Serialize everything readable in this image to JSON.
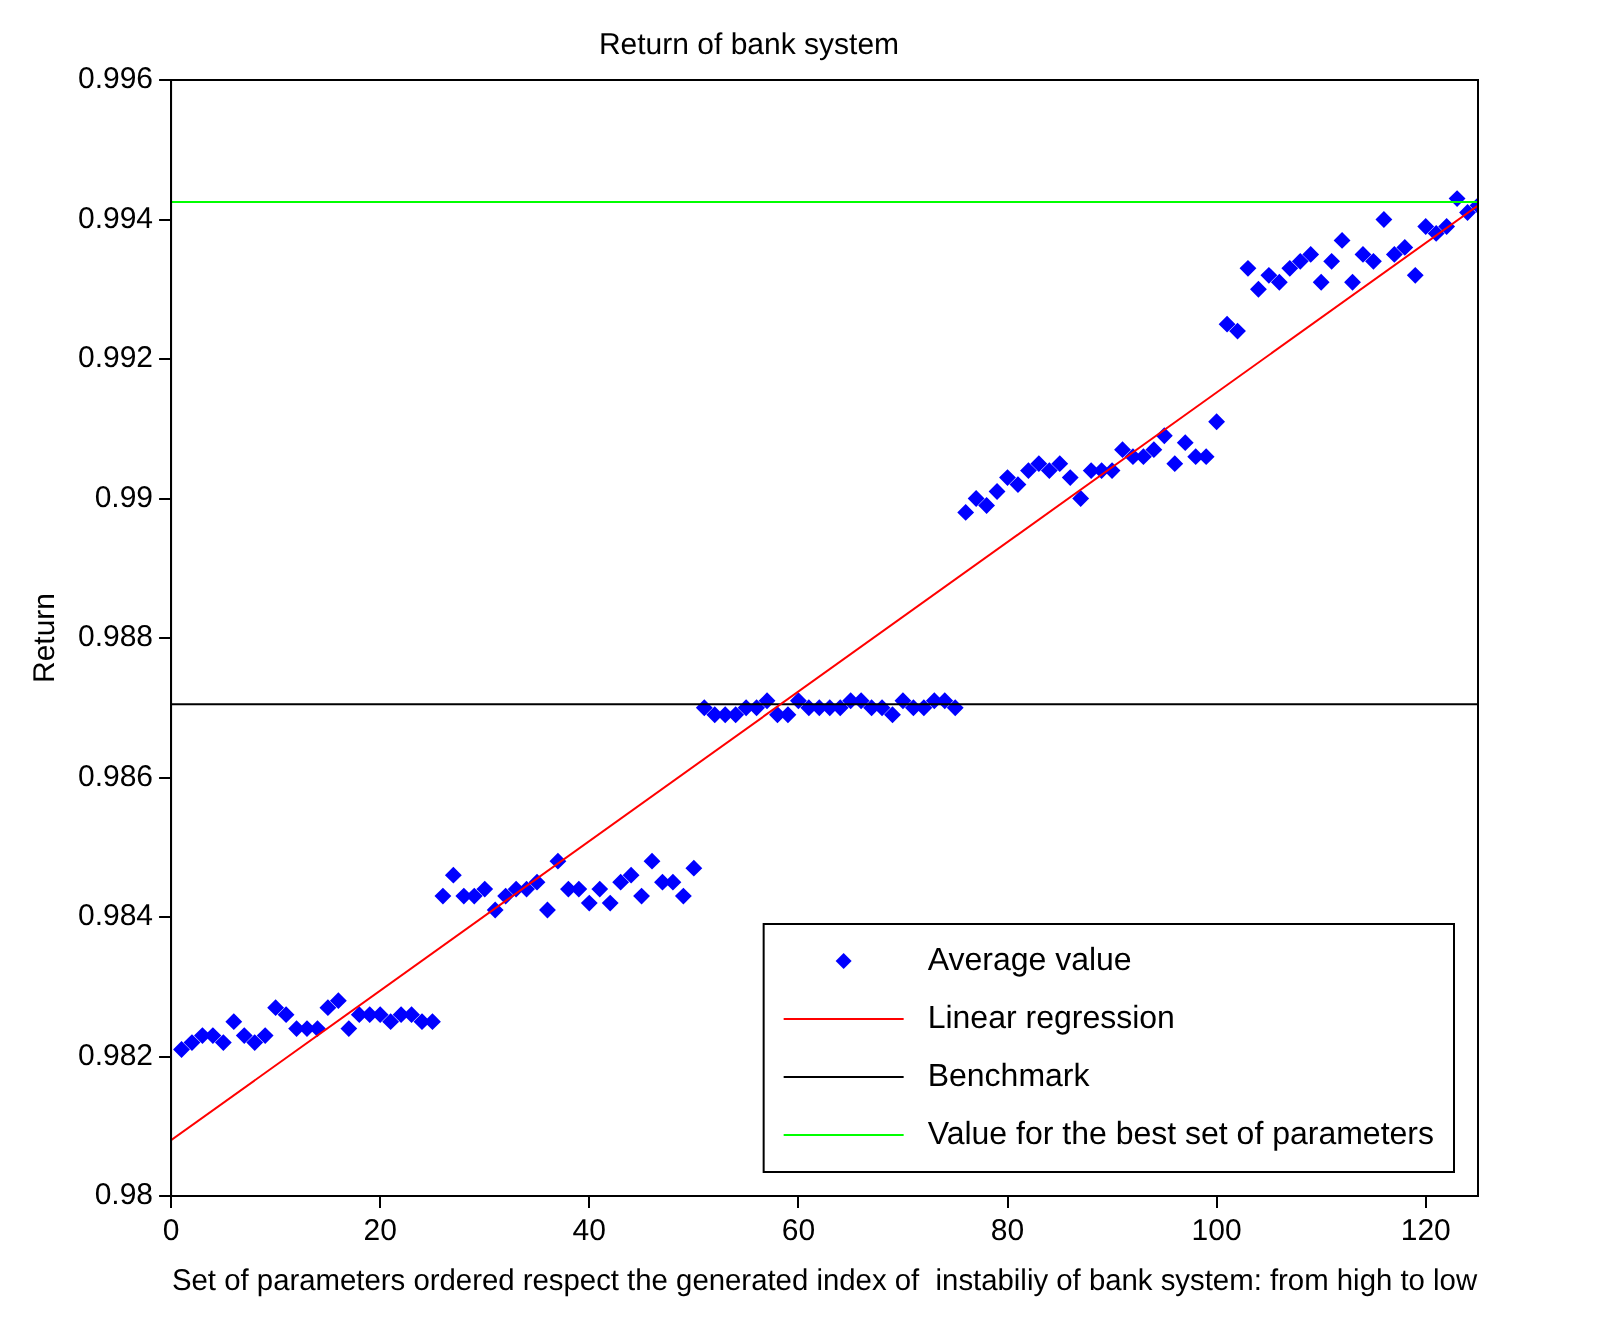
{
  "chart_data": {
    "type": "scatter",
    "title": "Return of bank system",
    "xlabel": "Set of parameters ordered respect the generated index of  instabiliy of bank system: from high to low",
    "ylabel": "Return",
    "xlim": [
      0,
      125
    ],
    "xticks": [
      0,
      20,
      40,
      60,
      80,
      100,
      120
    ],
    "ylim": [
      0.98,
      0.996
    ],
    "yticks": [
      0.98,
      0.982,
      0.984,
      0.986,
      0.988,
      0.99,
      0.992,
      0.994,
      0.996
    ],
    "grid": false,
    "legend": "bottom right",
    "series": [
      {
        "name": "Average value",
        "type": "scatter",
        "marker": "diamond",
        "color": "#0000ff",
        "x": [
          1,
          2,
          3,
          4,
          5,
          6,
          7,
          8,
          9,
          10,
          11,
          12,
          13,
          14,
          15,
          16,
          17,
          18,
          19,
          20,
          21,
          22,
          23,
          24,
          25,
          26,
          27,
          28,
          29,
          30,
          31,
          32,
          33,
          34,
          35,
          36,
          37,
          38,
          39,
          40,
          41,
          42,
          43,
          44,
          45,
          46,
          47,
          48,
          49,
          50,
          51,
          52,
          53,
          54,
          55,
          56,
          57,
          58,
          59,
          60,
          61,
          62,
          63,
          64,
          65,
          66,
          67,
          68,
          69,
          70,
          71,
          72,
          73,
          74,
          75,
          76,
          77,
          78,
          79,
          80,
          81,
          82,
          83,
          84,
          85,
          86,
          87,
          88,
          89,
          90,
          91,
          92,
          93,
          94,
          95,
          96,
          97,
          98,
          99,
          100,
          101,
          102,
          103,
          104,
          105,
          106,
          107,
          108,
          109,
          110,
          111,
          112,
          113,
          114,
          115,
          116,
          117,
          118,
          119,
          120,
          121,
          122,
          123,
          124,
          125
        ],
        "values": [
          0.9821,
          0.9822,
          0.9823,
          0.9823,
          0.9822,
          0.9825,
          0.9823,
          0.9822,
          0.9823,
          0.9827,
          0.9826,
          0.9824,
          0.9824,
          0.9824,
          0.9827,
          0.9828,
          0.9824,
          0.9826,
          0.9826,
          0.9826,
          0.9825,
          0.9826,
          0.9826,
          0.9825,
          0.9825,
          0.9843,
          0.9846,
          0.9843,
          0.9843,
          0.9844,
          0.9841,
          0.9843,
          0.9844,
          0.9844,
          0.9845,
          0.9841,
          0.9848,
          0.9844,
          0.9844,
          0.9842,
          0.9844,
          0.9842,
          0.9845,
          0.9846,
          0.9843,
          0.9848,
          0.9845,
          0.9845,
          0.9843,
          0.9847,
          0.987,
          0.9869,
          0.9869,
          0.9869,
          0.987,
          0.987,
          0.9871,
          0.9869,
          0.9869,
          0.9871,
          0.987,
          0.987,
          0.987,
          0.987,
          0.9871,
          0.9871,
          0.987,
          0.987,
          0.9869,
          0.9871,
          0.987,
          0.987,
          0.9871,
          0.9871,
          0.987,
          0.9898,
          0.99,
          0.9899,
          0.9901,
          0.9903,
          0.9902,
          0.9904,
          0.9905,
          0.9904,
          0.9905,
          0.9903,
          0.99,
          0.9904,
          0.9904,
          0.9904,
          0.9907,
          0.9906,
          0.9906,
          0.9907,
          0.9909,
          0.9905,
          0.9908,
          0.9906,
          0.9906,
          0.9911,
          0.9925,
          0.9924,
          0.9933,
          0.993,
          0.9932,
          0.9931,
          0.9933,
          0.9934,
          0.9935,
          0.9931,
          0.9934,
          0.9937,
          0.9931,
          0.9935,
          0.9934,
          0.994,
          0.9935,
          0.9936,
          0.9932,
          0.9939,
          0.9938,
          0.9939,
          0.9943,
          0.9941,
          0.9942
        ]
      },
      {
        "name": "Linear regression",
        "type": "line",
        "marker": "none",
        "color": "#ff0000",
        "x": [
          0,
          125
        ],
        "values": [
          0.9808,
          0.9942
        ]
      },
      {
        "name": "Benchmark",
        "type": "line",
        "marker": "none",
        "color": "#000000",
        "x": [
          0,
          125
        ],
        "values": [
          0.98705,
          0.98705
        ]
      },
      {
        "name": "Value for the best set of parameters",
        "type": "line",
        "marker": "none",
        "color": "#00ff00",
        "x": [
          0,
          125
        ],
        "values": [
          0.99425,
          0.99425
        ]
      }
    ]
  }
}
